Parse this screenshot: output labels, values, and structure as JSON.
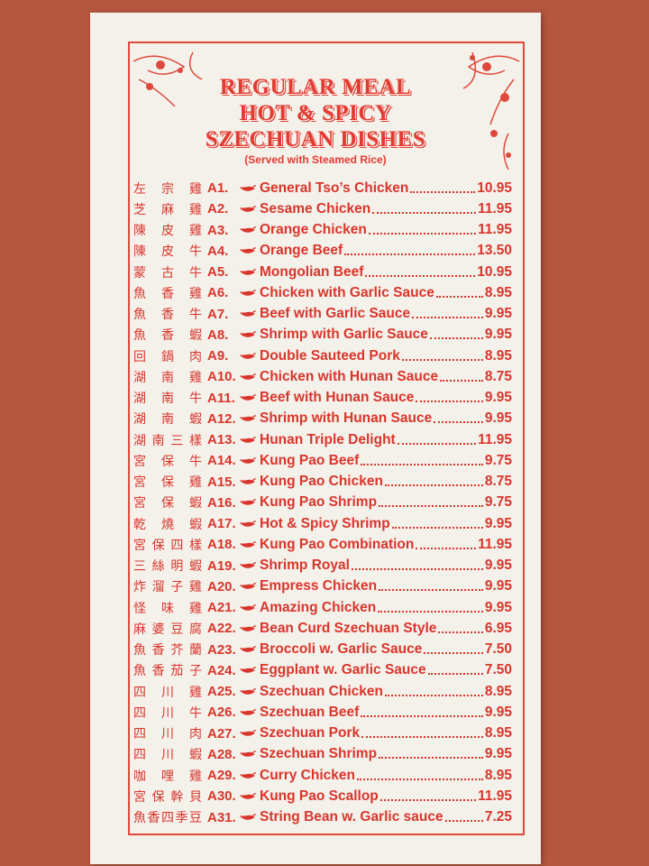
{
  "header": {
    "title_lines": [
      "REGULAR MEAL",
      "HOT & SPICY",
      "SZECHUAN DISHES"
    ],
    "subtitle": "(Served with Steamed Rice)"
  },
  "items": [
    {
      "chinese": "左宗雞",
      "code": "A1.",
      "name": "General Tso’s Chicken",
      "price": "10.95"
    },
    {
      "chinese": "芝麻雞",
      "code": "A2.",
      "name": "Sesame Chicken",
      "price": "11.95"
    },
    {
      "chinese": "陳皮雞",
      "code": "A3.",
      "name": "Orange Chicken",
      "price": "11.95"
    },
    {
      "chinese": "陳皮牛",
      "code": "A4.",
      "name": "Orange Beef",
      "price": "13.50"
    },
    {
      "chinese": "蒙古牛",
      "code": "A5.",
      "name": "Mongolian Beef",
      "price": "10.95"
    },
    {
      "chinese": "魚香雞",
      "code": "A6.",
      "name": "Chicken with Garlic Sauce",
      "price": "8.95"
    },
    {
      "chinese": "魚香牛",
      "code": "A7.",
      "name": "Beef with Garlic Sauce",
      "price": "9.95"
    },
    {
      "chinese": "魚香蝦",
      "code": "A8.",
      "name": "Shrimp with Garlic Sauce",
      "price": "9.95"
    },
    {
      "chinese": "回鍋肉",
      "code": "A9.",
      "name": "Double Sauteed Pork",
      "price": "8.95"
    },
    {
      "chinese": "湖南雞",
      "code": "A10.",
      "name": "Chicken with Hunan Sauce",
      "price": "8.75"
    },
    {
      "chinese": "湖南牛",
      "code": "A11.",
      "name": "Beef with Hunan Sauce",
      "price": "9.95"
    },
    {
      "chinese": "湖南蝦",
      "code": "A12.",
      "name": "Shrimp with Hunan Sauce",
      "price": "9.95"
    },
    {
      "chinese": "湖南三樣",
      "code": "A13.",
      "name": "Hunan Triple Delight",
      "price": "11.95"
    },
    {
      "chinese": "宮保牛",
      "code": "A14.",
      "name": "Kung Pao Beef",
      "price": "9.75"
    },
    {
      "chinese": "宮保雞",
      "code": "A15.",
      "name": "Kung Pao Chicken",
      "price": "8.75"
    },
    {
      "chinese": "宮保蝦",
      "code": "A16.",
      "name": "Kung Pao Shrimp",
      "price": "9.75"
    },
    {
      "chinese": "乾燒蝦",
      "code": "A17.",
      "name": "Hot & Spicy Shrimp",
      "price": "9.95"
    },
    {
      "chinese": "宮保四樣",
      "code": "A18.",
      "name": "Kung Pao Combination",
      "price": "11.95"
    },
    {
      "chinese": "三絲明蝦",
      "code": "A19.",
      "name": "Shrimp Royal",
      "price": "9.95"
    },
    {
      "chinese": "炸溜子雞",
      "code": "A20.",
      "name": "Empress Chicken",
      "price": "9.95"
    },
    {
      "chinese": "怪味雞",
      "code": "A21.",
      "name": "Amazing Chicken",
      "price": "9.95"
    },
    {
      "chinese": "麻婆豆腐",
      "code": "A22.",
      "name": "Bean Curd Szechuan Style",
      "price": "6.95"
    },
    {
      "chinese": "魚香芥蘭",
      "code": "A23.",
      "name": "Broccoli w. Garlic Sauce",
      "price": "7.50"
    },
    {
      "chinese": "魚香茄子",
      "code": "A24.",
      "name": "Eggplant w. Garlic Sauce",
      "price": "7.50"
    },
    {
      "chinese": "四川雞",
      "code": "A25.",
      "name": "Szechuan Chicken",
      "price": "8.95"
    },
    {
      "chinese": "四川牛",
      "code": "A26.",
      "name": "Szechuan Beef",
      "price": "9.95"
    },
    {
      "chinese": "四川肉",
      "code": "A27.",
      "name": "Szechuan Pork",
      "price": "8.95"
    },
    {
      "chinese": "四川蝦",
      "code": "A28.",
      "name": "Szechuan Shrimp",
      "price": "9.95"
    },
    {
      "chinese": "咖哩雞",
      "code": "A29.",
      "name": "Curry Chicken",
      "price": "8.95"
    },
    {
      "chinese": "宮保幹貝",
      "code": "A30.",
      "name": "Kung Pao Scallop",
      "price": "11.95"
    },
    {
      "chinese": "魚香四季豆",
      "code": "A31.",
      "name": "String Bean w. Garlic sauce",
      "price": "7.25"
    }
  ]
}
